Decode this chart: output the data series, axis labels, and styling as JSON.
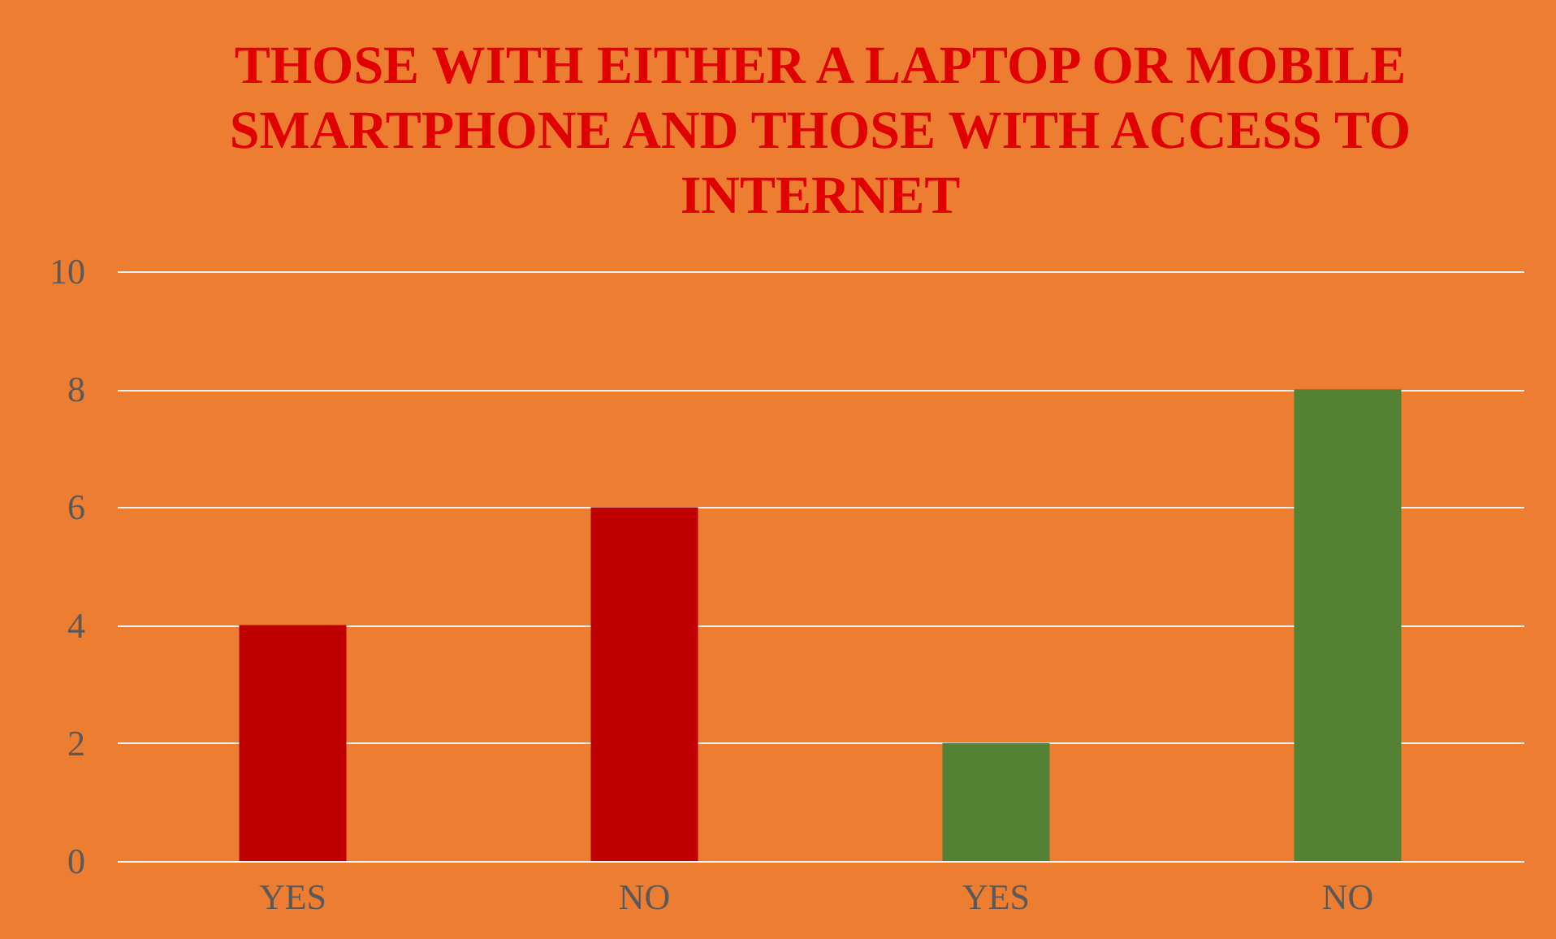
{
  "chart_data": {
    "type": "bar",
    "title": "THOSE WITH EITHER A LAPTOP OR MOBILE SMARTPHONE AND THOSE WITH ACCESS TO INTERNET",
    "categories": [
      "YES",
      "NO",
      "YES",
      "NO"
    ],
    "values": [
      4,
      6,
      2,
      8
    ],
    "colors": [
      "#c00000",
      "#c00000",
      "#548235",
      "#548235"
    ],
    "ylim": [
      0,
      10
    ],
    "yticks": [
      0,
      2,
      4,
      6,
      8,
      10
    ],
    "grid": "y"
  }
}
